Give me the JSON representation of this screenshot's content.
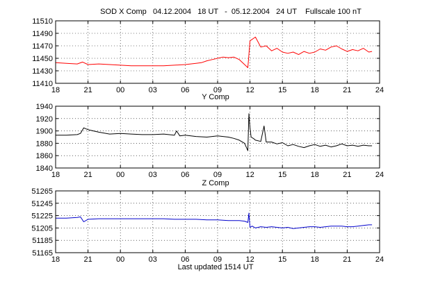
{
  "figure": {
    "title": "SOD X Comp   04.12.2004   18 UT   -  05.12.2004   24 UT    Fullscale 100 nT",
    "footer": "Last updated 1514 UT"
  },
  "chart_data": [
    {
      "type": "line",
      "panel_label": "",
      "xlabel": "Y Comp",
      "x_unit": "hours from 04.12.2004 18 UT",
      "xlim": [
        0,
        30
      ],
      "x_ticks": [
        0,
        3,
        6,
        9,
        12,
        15,
        18,
        21,
        24,
        27,
        30
      ],
      "x_tick_labels": [
        "18",
        "21",
        "00",
        "03",
        "06",
        "09",
        "12",
        "15",
        "18",
        "21",
        "24"
      ],
      "ylim": [
        11410,
        11510
      ],
      "y_ticks": [
        11410,
        11430,
        11450,
        11470,
        11490,
        11510
      ],
      "grid": true,
      "series": [
        {
          "color": "#ff0000",
          "x": [
            0,
            1,
            2,
            2.5,
            3,
            4,
            5,
            6,
            7,
            8,
            9,
            10,
            11,
            12,
            12.5,
            13,
            13.5,
            14,
            14.5,
            15,
            15.5,
            16,
            16.5,
            17,
            17.5,
            17.8,
            18,
            18.5,
            19,
            19.5,
            20,
            20.5,
            21,
            21.5,
            22,
            22.5,
            23,
            23.5,
            24,
            24.5,
            25,
            25.5,
            26,
            26.5,
            27,
            27.5,
            28,
            28.5,
            29,
            29.3
          ],
          "y": [
            11443,
            11442,
            11441,
            11444,
            11440,
            11441,
            11440,
            11439,
            11438,
            11438,
            11438,
            11438,
            11439,
            11440,
            11441,
            11442,
            11443,
            11446,
            11448,
            11450,
            11452,
            11451,
            11452,
            11448,
            11440,
            11435,
            11478,
            11484,
            11468,
            11470,
            11462,
            11466,
            11460,
            11458,
            11460,
            11456,
            11461,
            11458,
            11460,
            11465,
            11463,
            11468,
            11470,
            11465,
            11461,
            11464,
            11462,
            11466,
            11460,
            11461
          ]
        }
      ]
    },
    {
      "type": "line",
      "panel_label": "",
      "xlabel": "Z Comp",
      "x_unit": "hours from 04.12.2004 18 UT",
      "xlim": [
        0,
        30
      ],
      "x_ticks": [
        0,
        3,
        6,
        9,
        12,
        15,
        18,
        21,
        24,
        27,
        30
      ],
      "x_tick_labels": [
        "18",
        "21",
        "00",
        "03",
        "06",
        "09",
        "12",
        "15",
        "18",
        "21",
        "24"
      ],
      "ylim": [
        1840,
        1940
      ],
      "y_ticks": [
        1840,
        1860,
        1880,
        1900,
        1920,
        1940
      ],
      "grid": true,
      "series": [
        {
          "color": "#000000",
          "x": [
            0,
            1,
            2,
            2.3,
            2.6,
            3,
            3.5,
            4,
            5,
            6,
            7,
            8,
            9,
            10,
            11,
            11.2,
            11.5,
            12,
            13,
            14,
            15,
            16,
            16.5,
            17,
            17.5,
            17.8,
            17.9,
            18,
            18.1,
            18.3,
            18.5,
            19,
            19.3,
            19.5,
            20,
            20.5,
            21,
            21.5,
            22,
            22.5,
            23,
            23.5,
            24,
            24.5,
            25,
            25.5,
            26,
            26.5,
            27,
            27.5,
            28,
            28.5,
            29,
            29.3
          ],
          "y": [
            1893,
            1893,
            1894,
            1896,
            1905,
            1902,
            1900,
            1898,
            1895,
            1896,
            1895,
            1894,
            1894,
            1895,
            1893,
            1900,
            1892,
            1893,
            1891,
            1890,
            1892,
            1890,
            1888,
            1885,
            1880,
            1868,
            1928,
            1905,
            1890,
            1888,
            1885,
            1883,
            1908,
            1882,
            1882,
            1879,
            1881,
            1876,
            1878,
            1875,
            1873,
            1876,
            1878,
            1875,
            1877,
            1874,
            1876,
            1879,
            1876,
            1877,
            1875,
            1877,
            1876,
            1876
          ]
        }
      ]
    },
    {
      "type": "line",
      "panel_label": "",
      "xlabel": "",
      "x_unit": "hours from 04.12.2004 18 UT",
      "xlim": [
        0,
        30
      ],
      "x_ticks": [
        0,
        3,
        6,
        9,
        12,
        15,
        18,
        21,
        24,
        27,
        30
      ],
      "x_tick_labels": [
        "18",
        "21",
        "00",
        "03",
        "06",
        "09",
        "12",
        "15",
        "18",
        "21",
        "24"
      ],
      "ylim": [
        51165,
        51265
      ],
      "y_ticks": [
        51165,
        51185,
        51205,
        51225,
        51245,
        51265
      ],
      "grid": true,
      "series": [
        {
          "color": "#0000cc",
          "x": [
            0,
            1,
            2,
            2.3,
            2.6,
            3,
            4,
            5,
            6,
            7,
            8,
            9,
            10,
            11,
            12,
            13,
            14,
            15,
            16,
            17,
            17.5,
            17.8,
            17.9,
            18,
            18.2,
            18.5,
            19,
            19.5,
            20,
            20.5,
            21,
            21.5,
            22,
            22.5,
            23,
            23.5,
            24,
            24.5,
            25,
            25.5,
            26,
            26.5,
            27,
            27.5,
            28,
            28.5,
            29,
            29.3
          ],
          "y": [
            51221,
            51221,
            51222,
            51223,
            51215,
            51219,
            51220,
            51220,
            51220,
            51220,
            51220,
            51220,
            51220,
            51219,
            51219,
            51219,
            51218,
            51218,
            51217,
            51217,
            51216,
            51214,
            51229,
            51206,
            51208,
            51205,
            51207,
            51206,
            51207,
            51206,
            51205,
            51206,
            51204,
            51205,
            51206,
            51207,
            51207,
            51206,
            51207,
            51208,
            51208,
            51208,
            51207,
            51207,
            51208,
            51209,
            51210,
            51210
          ]
        }
      ]
    }
  ]
}
